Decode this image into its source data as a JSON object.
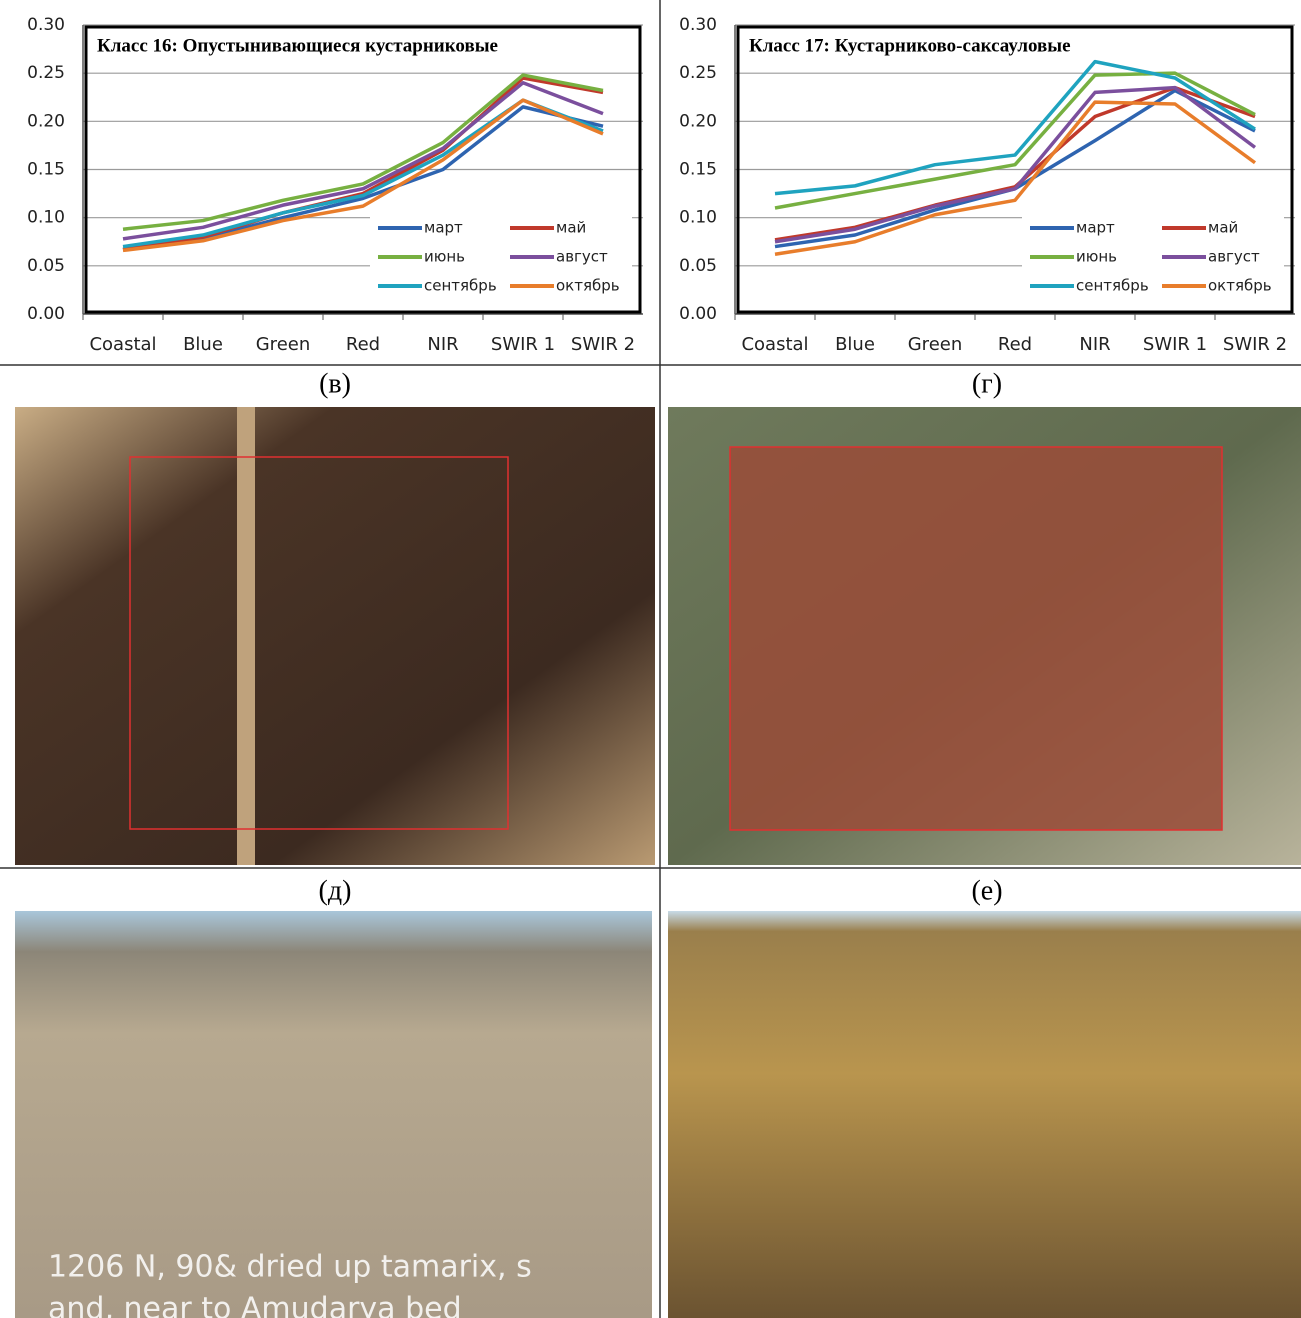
{
  "chart_data": [
    {
      "type": "line",
      "title": "Класс 16: Опустынивающиеся кустарниковые",
      "categories": [
        "Coastal",
        "Blue",
        "Green",
        "Red",
        "NIR",
        "SWIR 1",
        "SWIR 2"
      ],
      "ylim": [
        0,
        0.3
      ],
      "yticks": [
        {
          "value": 0,
          "label": "0.00"
        },
        {
          "value": 0.05,
          "label": "0.05"
        },
        {
          "value": 0.1,
          "label": "0.10"
        },
        {
          "value": 0.15,
          "label": "0.15"
        },
        {
          "value": 0.2,
          "label": "0.20"
        },
        {
          "value": 0.25,
          "label": "0.25"
        },
        {
          "value": 0.3,
          "label": "0.30"
        }
      ],
      "grid": true,
      "series": [
        {
          "name": "март",
          "color": "#2e64b0",
          "values": [
            0.067,
            0.078,
            0.1,
            0.12,
            0.15,
            0.215,
            0.195
          ]
        },
        {
          "name": "май",
          "color": "#c0392b",
          "values": [
            0.067,
            0.08,
            0.105,
            0.125,
            0.17,
            0.245,
            0.23
          ]
        },
        {
          "name": "июнь",
          "color": "#77b041",
          "values": [
            0.088,
            0.097,
            0.118,
            0.135,
            0.178,
            0.248,
            0.232
          ]
        },
        {
          "name": "август",
          "color": "#7b4f9d",
          "values": [
            0.078,
            0.09,
            0.113,
            0.13,
            0.172,
            0.24,
            0.208
          ]
        },
        {
          "name": "сентябрь",
          "color": "#1fa3bf",
          "values": [
            0.07,
            0.082,
            0.105,
            0.123,
            0.165,
            0.222,
            0.19
          ]
        },
        {
          "name": "октябрь",
          "color": "#e87d2b",
          "values": [
            0.066,
            0.076,
            0.097,
            0.112,
            0.16,
            0.222,
            0.187
          ]
        }
      ]
    },
    {
      "type": "line",
      "title": "Класс 17: Кустарниково-саксауловые",
      "categories": [
        "Coastal",
        "Blue",
        "Green",
        "Red",
        "NIR",
        "SWIR 1",
        "SWIR 2"
      ],
      "ylim": [
        0,
        0.3
      ],
      "yticks": [
        {
          "value": 0,
          "label": "0.00"
        },
        {
          "value": 0.05,
          "label": "0.05"
        },
        {
          "value": 0.1,
          "label": "0.10"
        },
        {
          "value": 0.15,
          "label": "0.15"
        },
        {
          "value": 0.2,
          "label": "0.20"
        },
        {
          "value": 0.25,
          "label": "0.25"
        },
        {
          "value": 0.3,
          "label": "0.30"
        }
      ],
      "grid": true,
      "series": [
        {
          "name": "март",
          "color": "#2e64b0",
          "values": [
            0.07,
            0.082,
            0.108,
            0.13,
            0.18,
            0.232,
            0.19
          ]
        },
        {
          "name": "май",
          "color": "#c0392b",
          "values": [
            0.077,
            0.09,
            0.113,
            0.132,
            0.205,
            0.235,
            0.205
          ]
        },
        {
          "name": "июнь",
          "color": "#77b041",
          "values": [
            0.11,
            0.125,
            0.14,
            0.155,
            0.248,
            0.25,
            0.207
          ]
        },
        {
          "name": "август",
          "color": "#7b4f9d",
          "values": [
            0.075,
            0.088,
            0.112,
            0.13,
            0.23,
            0.235,
            0.173
          ]
        },
        {
          "name": "сентябрь",
          "color": "#1fa3bf",
          "values": [
            0.125,
            0.133,
            0.155,
            0.165,
            0.262,
            0.245,
            0.192
          ]
        },
        {
          "name": "октябрь",
          "color": "#e87d2b",
          "values": [
            0.062,
            0.075,
            0.103,
            0.118,
            0.22,
            0.218,
            0.157
          ]
        }
      ]
    }
  ],
  "panel_labels": [
    "(в)",
    "(г)",
    "(д)",
    "(е)"
  ],
  "photo_caption": [
    "1206 N, 90& dried up tamarix, s",
    "and, near to Amudarya bed"
  ]
}
